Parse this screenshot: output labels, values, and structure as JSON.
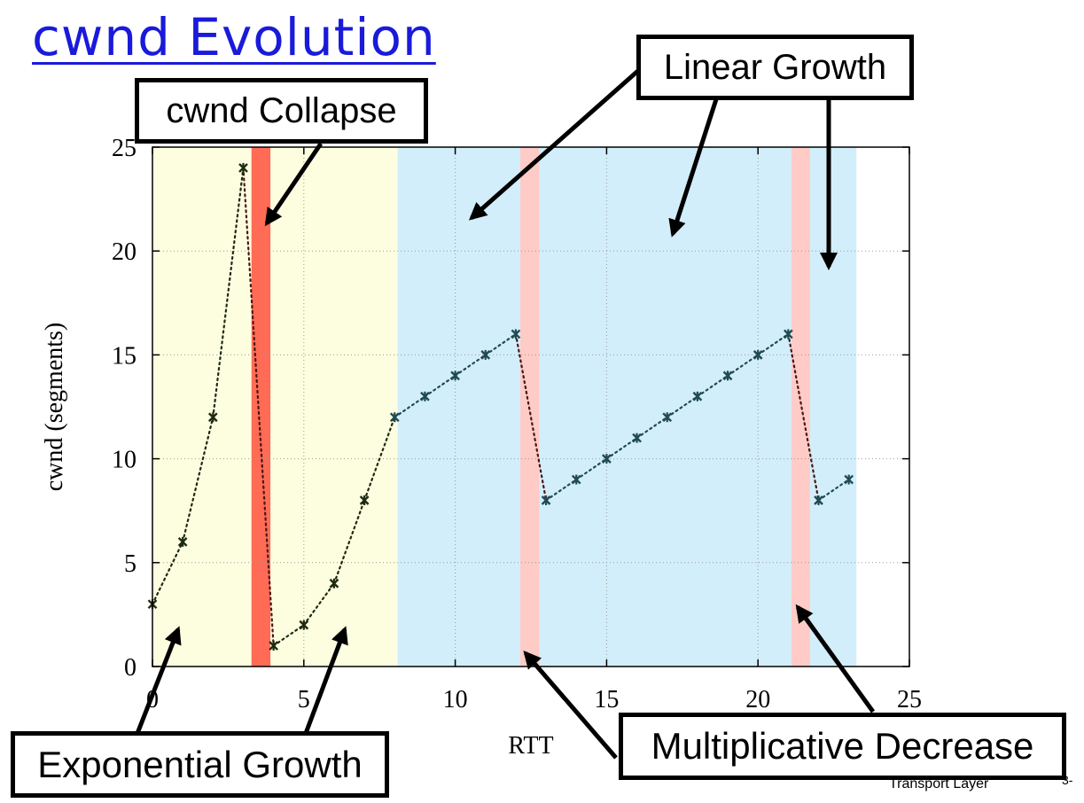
{
  "slide": {
    "title": "cwnd Evolution",
    "footer": "Transport Layer",
    "page_number": "3-"
  },
  "callouts": {
    "collapse": "cwnd Collapse",
    "linear": "Linear Growth",
    "exponential": "Exponential Growth",
    "multiplicative": "Multiplicative Decrease"
  },
  "colors": {
    "title": "#1a1adb",
    "exponential_band": "#fdfde0",
    "linear_band": "#d2eefa",
    "collapse_band": "#ff6b55",
    "decrease_band": "#fecbc6",
    "series_exponential": "#1f2a12",
    "series_linear": "#214a52",
    "series_drop": "#4a1616"
  },
  "chart_data": {
    "type": "line",
    "xlabel": "RTT",
    "ylabel": "cwnd (segments)",
    "xlim": [
      0,
      25
    ],
    "ylim": [
      0,
      25
    ],
    "xticks": [
      0,
      5,
      10,
      15,
      20,
      25
    ],
    "yticks": [
      0,
      5,
      10,
      15,
      20,
      25
    ],
    "grid": true,
    "x": [
      0,
      1,
      2,
      3,
      4,
      5,
      6,
      7,
      8,
      9,
      10,
      11,
      12,
      13,
      14,
      15,
      16,
      17,
      18,
      19,
      20,
      21,
      22,
      23
    ],
    "y": [
      3,
      6,
      12,
      24,
      1,
      2,
      4,
      8,
      12,
      13,
      14,
      15,
      16,
      8,
      9,
      10,
      11,
      12,
      13,
      14,
      15,
      16,
      8,
      9
    ],
    "regions": [
      {
        "type": "exponential",
        "x_start": 0,
        "x_end": 3.27
      },
      {
        "type": "collapse",
        "x_start": 3.27,
        "x_end": 3.9
      },
      {
        "type": "exponential",
        "x_start": 3.9,
        "x_end": 8.1
      },
      {
        "type": "linear",
        "x_start": 8.1,
        "x_end": 12.15
      },
      {
        "type": "decrease",
        "x_start": 12.15,
        "x_end": 12.78
      },
      {
        "type": "linear",
        "x_start": 12.78,
        "x_end": 21.1
      },
      {
        "type": "decrease",
        "x_start": 21.1,
        "x_end": 21.72
      },
      {
        "type": "linear",
        "x_start": 21.72,
        "x_end": 23.25
      }
    ]
  }
}
